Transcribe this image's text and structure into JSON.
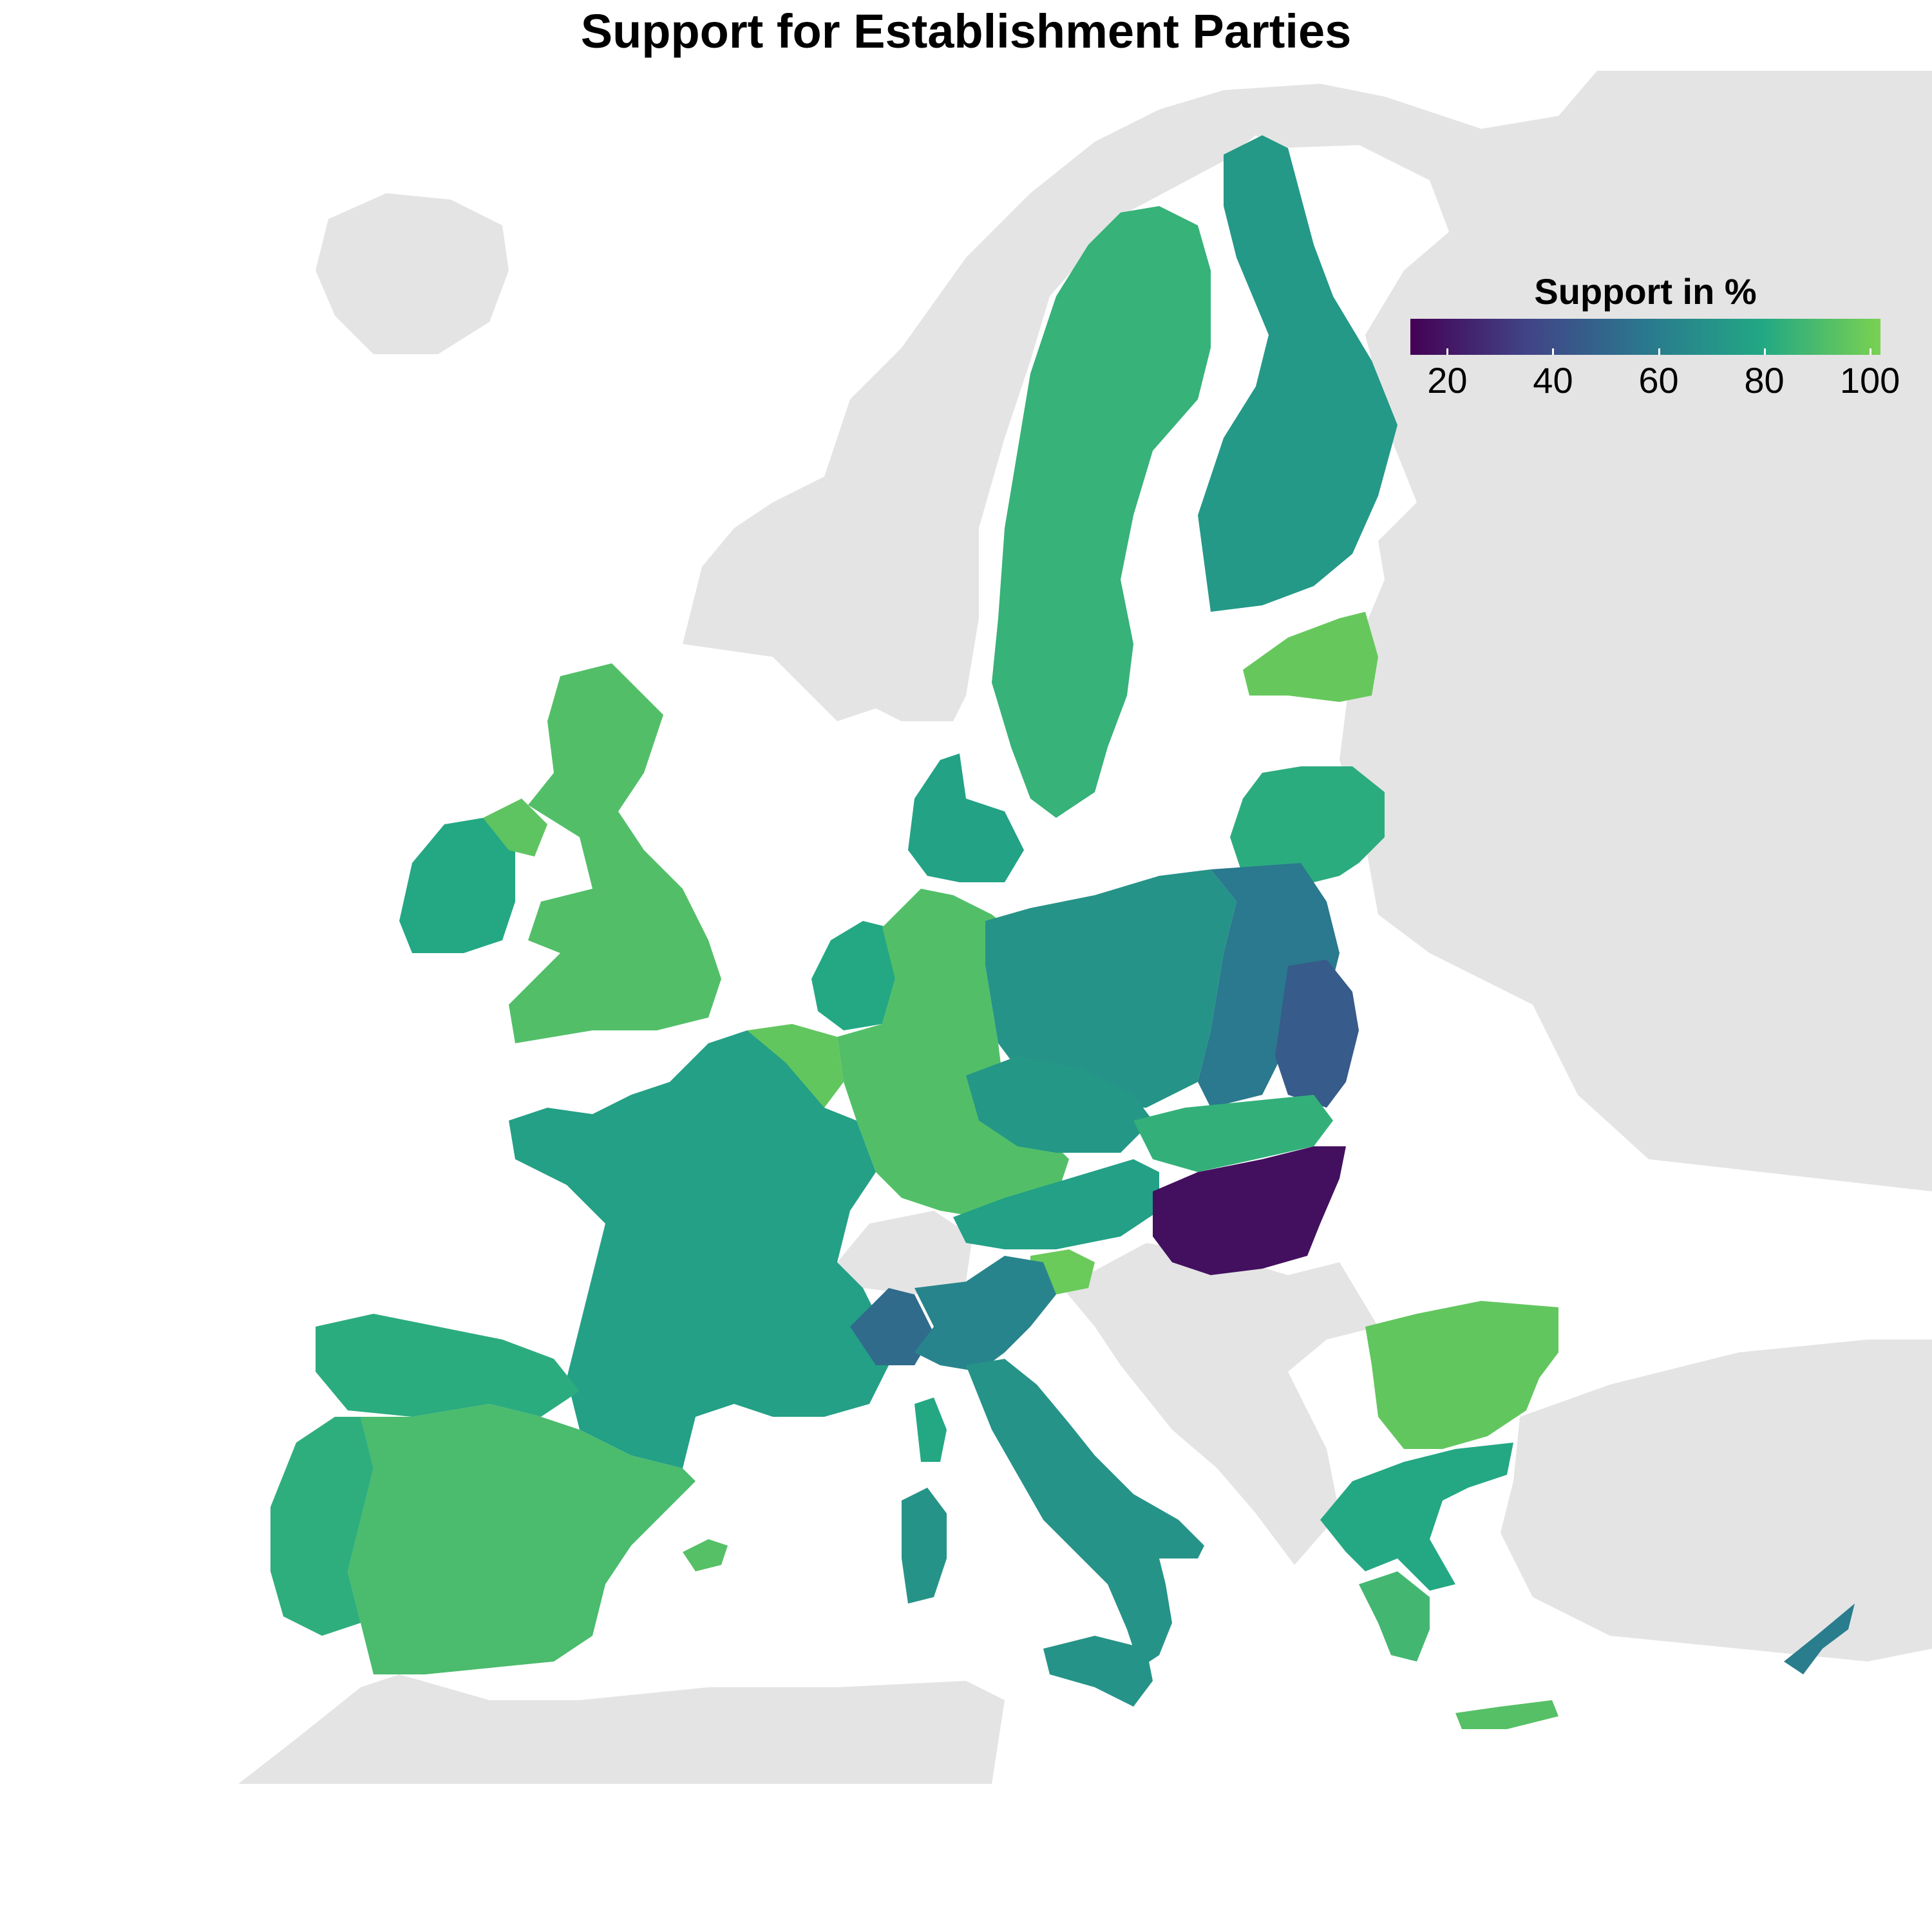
{
  "title": "Support for Establishment Parties",
  "legend": {
    "title": "Support in %",
    "ticks": [
      "20",
      "40",
      "60",
      "80",
      "100"
    ],
    "range": [
      13,
      102
    ],
    "colors": [
      "#440154",
      "#414487",
      "#2a788e",
      "#22a884",
      "#7ad151"
    ]
  },
  "colors": {
    "background_land": "#e4e4e4",
    "sea": "#ffffff"
  },
  "regions": [
    {
      "id": "norway",
      "name": "Norway",
      "value": null
    },
    {
      "id": "iceland",
      "name": "Iceland",
      "value": null
    },
    {
      "id": "russia",
      "name": "Russia",
      "value": null
    },
    {
      "id": "belarus-ukraine",
      "name": "Belarus / Ukraine",
      "value": null
    },
    {
      "id": "balkans",
      "name": "Balkans",
      "value": null
    },
    {
      "id": "switzerland",
      "name": "Switzerland",
      "value": null
    },
    {
      "id": "turkey",
      "name": "Turkey",
      "value": null
    },
    {
      "id": "north-africa",
      "name": "North Africa",
      "value": null
    },
    {
      "id": "finland",
      "name": "Finland",
      "value": 73
    },
    {
      "id": "sweden",
      "name": "Sweden",
      "value": 85
    },
    {
      "id": "estonia",
      "name": "Estonia",
      "value": 97
    },
    {
      "id": "latvia-lithuania",
      "name": "Latvia / Lithuania",
      "value": 82
    },
    {
      "id": "denmark",
      "name": "Denmark",
      "value": 77
    },
    {
      "id": "ireland",
      "name": "Ireland",
      "value": 80
    },
    {
      "id": "northern-ireland",
      "name": "Northern Ireland",
      "value": 95
    },
    {
      "id": "great-britain",
      "name": "Great Britain",
      "value": 92
    },
    {
      "id": "netherlands",
      "name": "Netherlands",
      "value": 80
    },
    {
      "id": "belgium",
      "name": "Belgium",
      "value": 96
    },
    {
      "id": "germany",
      "name": "Germany",
      "value": 92
    },
    {
      "id": "poland-west",
      "name": "Poland West",
      "value": 70
    },
    {
      "id": "poland-east",
      "name": "Poland East",
      "value": 58
    },
    {
      "id": "poland-southeast",
      "name": "Poland Southeast",
      "value": 45
    },
    {
      "id": "czechia",
      "name": "Czechia",
      "value": 72
    },
    {
      "id": "slovakia",
      "name": "Slovakia",
      "value": 84
    },
    {
      "id": "austria",
      "name": "Austria",
      "value": 76
    },
    {
      "id": "slovenia",
      "name": "Slovenia",
      "value": 98
    },
    {
      "id": "hungary",
      "name": "Hungary",
      "value": 18
    },
    {
      "id": "france",
      "name": "France",
      "value": 76
    },
    {
      "id": "spain",
      "name": "Spain",
      "value": 90
    },
    {
      "id": "spain-north",
      "name": "Spain North",
      "value": 82
    },
    {
      "id": "portugal",
      "name": "Portugal",
      "value": 83
    },
    {
      "id": "italy-north",
      "name": "Italy North",
      "value": 63
    },
    {
      "id": "italy-northwest",
      "name": "Italy Northwest",
      "value": 52
    },
    {
      "id": "italy-south",
      "name": "Italy South",
      "value": 70
    },
    {
      "id": "sicily",
      "name": "Sicily",
      "value": 70
    },
    {
      "id": "sardinia",
      "name": "Sardinia",
      "value": 70
    },
    {
      "id": "corsica",
      "name": "Corsica",
      "value": 80
    },
    {
      "id": "balearic",
      "name": "Balearic Islands",
      "value": 93
    },
    {
      "id": "bulgaria",
      "name": "Bulgaria",
      "value": 96
    },
    {
      "id": "greece",
      "name": "Greece",
      "value": 80
    },
    {
      "id": "peloponnese",
      "name": "Peloponnese",
      "value": 88
    },
    {
      "id": "crete",
      "name": "Crete",
      "value": 93
    },
    {
      "id": "cyprus",
      "name": "Cyprus",
      "value": 60
    }
  ]
}
